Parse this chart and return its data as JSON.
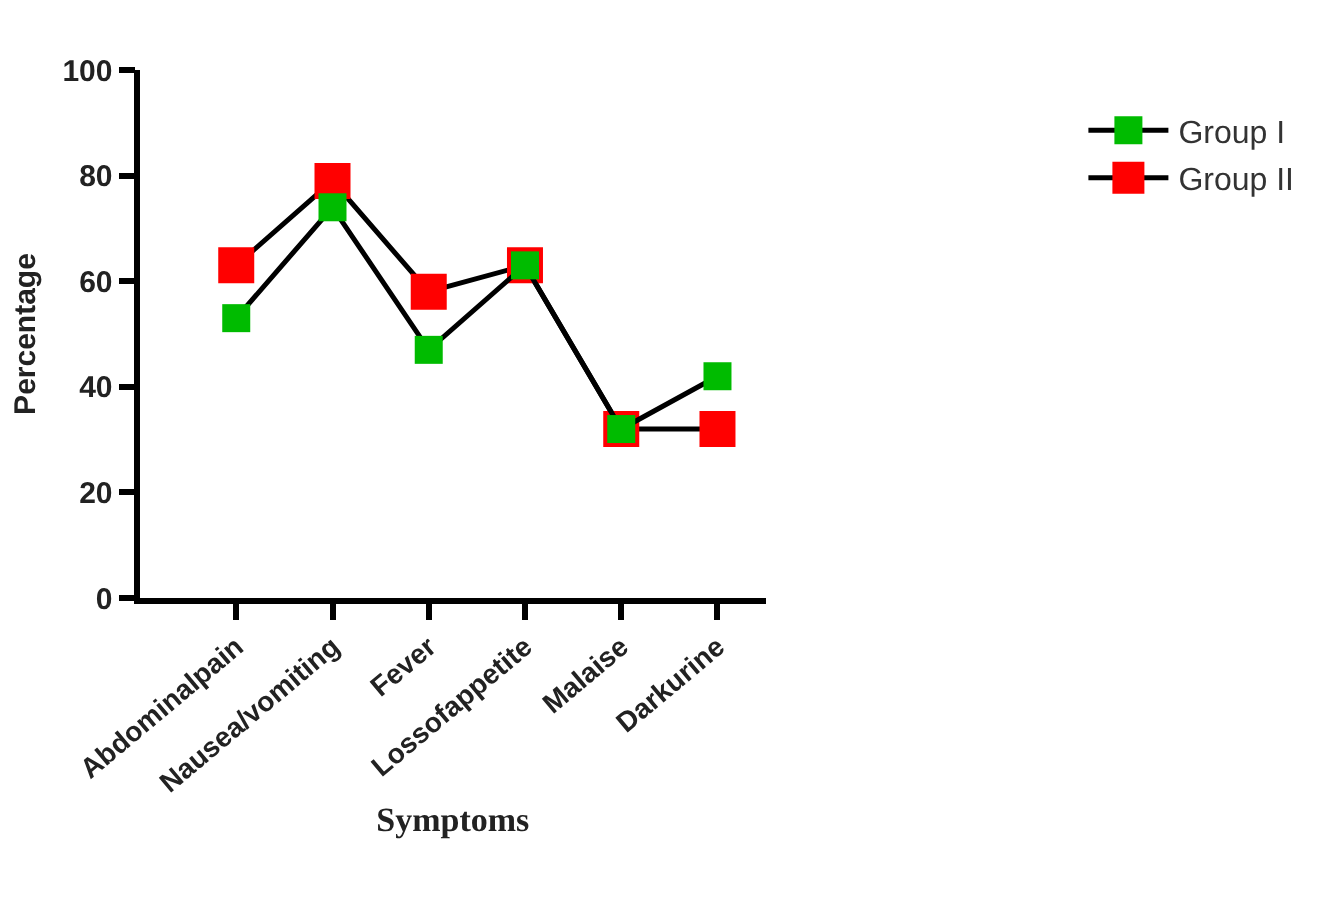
{
  "chart_data": {
    "type": "line",
    "xlabel": "Symptoms",
    "ylabel": "Percentage",
    "categories": [
      "Abdominalpain",
      "Nausea/vomiting",
      "Fever",
      "Lossofappetite",
      "Malaise",
      "Darkurine"
    ],
    "series": [
      {
        "name": "Group I",
        "color": "#00bb00",
        "values": [
          53,
          74,
          47,
          63,
          32,
          42
        ]
      },
      {
        "name": "Group II",
        "color": "#ff0000",
        "values": [
          63,
          79,
          58,
          63,
          32,
          32
        ]
      }
    ],
    "ylim": [
      0,
      100
    ],
    "yticks": [
      0,
      20,
      40,
      60,
      80,
      100
    ],
    "legend": "top right",
    "marker": "square",
    "line_style": "solid"
  }
}
